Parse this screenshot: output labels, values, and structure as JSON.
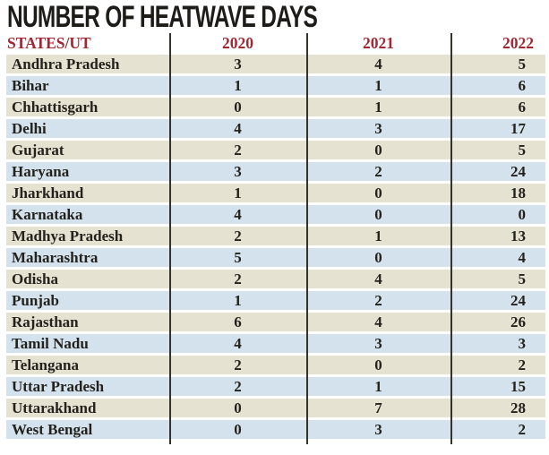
{
  "title": "NUMBER OF HEATWAVE DAYS",
  "chart_data": {
    "type": "table",
    "title": "NUMBER OF HEATWAVE DAYS",
    "columns": [
      "STATES/UT",
      "2020",
      "2021",
      "2022"
    ],
    "rows": [
      [
        "Andhra Pradesh",
        3,
        4,
        5
      ],
      [
        "Bihar",
        1,
        1,
        6
      ],
      [
        "Chhattisgarh",
        0,
        1,
        6
      ],
      [
        "Delhi",
        4,
        3,
        17
      ],
      [
        "Gujarat",
        2,
        0,
        5
      ],
      [
        "Haryana",
        3,
        2,
        24
      ],
      [
        "Jharkhand",
        1,
        0,
        18
      ],
      [
        "Karnataka",
        4,
        0,
        0
      ],
      [
        "Madhya Pradesh",
        2,
        1,
        13
      ],
      [
        "Maharashtra",
        5,
        0,
        4
      ],
      [
        "Odisha",
        2,
        4,
        5
      ],
      [
        "Punjab",
        1,
        2,
        24
      ],
      [
        "Rajasthan",
        6,
        4,
        26
      ],
      [
        "Tamil Nadu",
        4,
        3,
        3
      ],
      [
        "Telangana",
        2,
        0,
        2
      ],
      [
        "Uttar Pradesh",
        2,
        1,
        15
      ],
      [
        "Uttarakhand",
        0,
        7,
        28
      ],
      [
        "West Bengal",
        0,
        3,
        2
      ]
    ],
    "layout_hints": {
      "row_striping": [
        "beige",
        "blue"
      ],
      "grid": "vertical-dividers-only",
      "legend": "none"
    }
  },
  "colors": {
    "title_text": "#1d1c19",
    "header_text": "#a22733",
    "body_text": "#23221c",
    "row_beige": "#e6e2d2",
    "row_blue": "#d4e2ee",
    "divider": "#33322d"
  }
}
